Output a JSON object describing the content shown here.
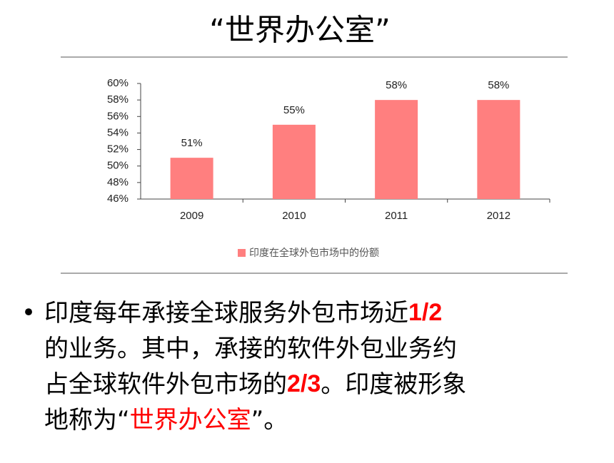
{
  "title": "“世界办公室”",
  "chart_data": {
    "type": "bar",
    "categories": [
      "2009",
      "2010",
      "2011",
      "2012"
    ],
    "series": [
      {
        "name": "印度在全球外包市场中的份额",
        "color": "#ff7f7f",
        "values": [
          51,
          55,
          58,
          58
        ],
        "value_labels": [
          "51%",
          "55%",
          "58%",
          "58%"
        ]
      }
    ],
    "ylim": [
      46,
      60
    ],
    "yticks": [
      {
        "value": 46,
        "label": "46%"
      },
      {
        "value": 48,
        "label": "48%"
      },
      {
        "value": 50,
        "label": "50%"
      },
      {
        "value": 52,
        "label": "52%"
      },
      {
        "value": 54,
        "label": "54%"
      },
      {
        "value": 56,
        "label": "56%"
      },
      {
        "value": 58,
        "label": "58%"
      },
      {
        "value": 60,
        "label": "60%"
      }
    ],
    "legend": "bottom"
  },
  "bullet": {
    "lines": [
      [
        {
          "text": "印度每年承接全球服务外包市场近"
        },
        {
          "text": "1/2",
          "color": "#ff0000",
          "bold": true
        }
      ],
      [
        {
          "text": "的业务。其中，承接的软件外包业务约"
        }
      ],
      [
        {
          "text": "占全球软件外包市场的"
        },
        {
          "text": "2/3",
          "color": "#ff0000",
          "bold": true
        },
        {
          "text": "。印度被形象"
        }
      ],
      [
        {
          "text": "地称为“"
        },
        {
          "text": "世界办公室",
          "color": "#ff0000"
        },
        {
          "text": "”。"
        }
      ]
    ]
  }
}
